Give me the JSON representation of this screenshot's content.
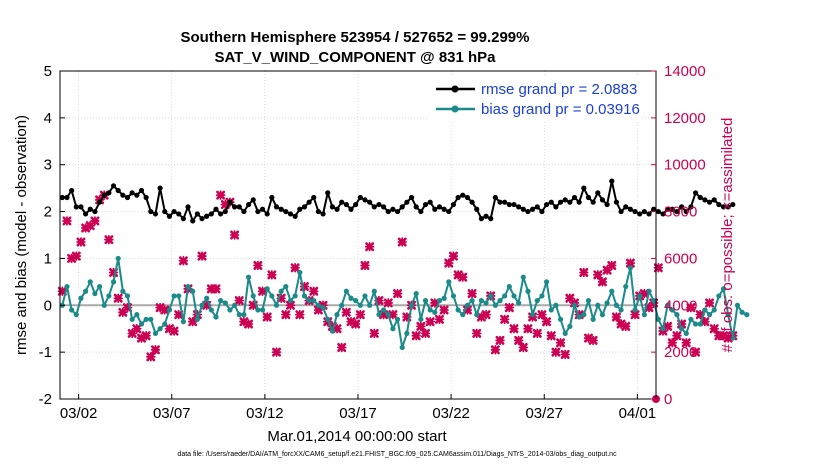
{
  "chart_data": {
    "type": "line",
    "title": "Southern Hemisphere 523954 / 527652 = 99.299%",
    "subtitle": "SAT_V_WIND_COMPONENT @ 831 hPa",
    "ylabel": "rmse and bias (model - observation)",
    "y2label": "# of obs: o=possible; ×=assimilated",
    "xlabel": "Mar.01,2014 00:00:00 start",
    "footer": "data file: /Users/raeder/DAI/ATM_forcXX/CAM6_setup/f.e21.FHIST_BGC.f09_025.CAM6assim.011/Diags_NTrS_2014-03/obs_diag_output.nc",
    "xlim": [
      0,
      32
    ],
    "ylim": [
      -2,
      5
    ],
    "y2lim": [
      0,
      14000
    ],
    "yticks": [
      "-2",
      "-1",
      "0",
      "1",
      "2",
      "3",
      "4",
      "5"
    ],
    "y2ticks": [
      "0",
      "2000",
      "4000",
      "6000",
      "8000",
      "10000",
      "12000",
      "14000"
    ],
    "xtick_positions": [
      1,
      6,
      11,
      16,
      21,
      26,
      31
    ],
    "xtick_labels": [
      "03/02",
      "03/07",
      "03/12",
      "03/17",
      "03/22",
      "03/27",
      "04/01"
    ],
    "grid": true,
    "legend": {
      "placement": "top-right",
      "entries": [
        {
          "label": "rmse grand pr = 2.0883",
          "color": "#000000"
        },
        {
          "label": "bias grand pr = 0.03916",
          "color": "#1a8a8a"
        }
      ]
    },
    "colors": {
      "rmse": "#000000",
      "bias": "#1a8a8a",
      "obs": "#cc0052",
      "zero_line": "#a9a9a9",
      "grid": "#cccccc"
    },
    "step_days": 0.25,
    "x_start": 0.125,
    "series": [
      {
        "name": "rmse",
        "values": [
          2.3,
          2.3,
          2.45,
          2.1,
          2.1,
          1.95,
          2.05,
          2.0,
          2.2,
          2.35,
          2.4,
          2.55,
          2.45,
          2.35,
          2.3,
          2.4,
          2.35,
          2.45,
          2.3,
          2.0,
          1.95,
          2.5,
          2.0,
          1.9,
          2.0,
          1.95,
          1.85,
          2.1,
          1.8,
          1.95,
          1.85,
          1.9,
          1.95,
          2.05,
          1.95,
          2.0,
          2.2,
          2.1,
          2.1,
          2.0,
          2.15,
          2.25,
          2.0,
          2.05,
          1.95,
          2.3,
          2.1,
          2.05,
          2.0,
          1.95,
          1.9,
          2.05,
          2.1,
          2.2,
          2.3,
          2.0,
          1.95,
          2.4,
          2.1,
          2.05,
          2.2,
          2.15,
          2.05,
          2.15,
          2.3,
          2.25,
          2.2,
          2.1,
          2.15,
          2.1,
          2.0,
          2.05,
          2.0,
          2.1,
          2.2,
          2.3,
          2.1,
          2.0,
          2.15,
          2.2,
          2.05,
          2.1,
          2.05,
          2.0,
          2.15,
          2.3,
          2.35,
          2.3,
          2.2,
          2.05,
          1.85,
          1.9,
          1.85,
          2.3,
          2.2,
          2.2,
          2.15,
          2.15,
          2.1,
          2.05,
          2.0,
          2.05,
          2.1,
          2.0,
          2.15,
          2.2,
          2.1,
          2.2,
          2.25,
          2.2,
          2.3,
          2.2,
          2.5,
          2.3,
          2.2,
          2.4,
          2.25,
          2.15,
          2.65,
          2.2,
          2.0,
          2.1,
          2.05,
          2.0,
          1.95,
          2.0,
          1.95,
          2.05,
          2.0,
          1.95,
          2.05,
          2.05,
          2.0,
          2.1,
          2.0,
          2.1,
          2.4,
          2.3,
          2.25,
          2.2,
          2.25,
          2.15,
          2.1,
          2.1,
          2.15
        ]
      },
      {
        "name": "bias",
        "values": [
          0.0,
          0.4,
          -0.1,
          -0.2,
          0.15,
          0.3,
          0.5,
          0.25,
          0.4,
          0.0,
          0.2,
          0.5,
          1.0,
          0.3,
          0.2,
          -0.3,
          -0.2,
          -0.4,
          -0.3,
          -0.3,
          -0.6,
          -0.5,
          -0.4,
          -0.1,
          0.2,
          0.2,
          -0.35,
          0.4,
          0.3,
          -0.3,
          0.0,
          0.15,
          -0.1,
          -0.25,
          0.1,
          0.05,
          -0.1,
          0.0,
          -0.2,
          -0.2,
          0.6,
          0.2,
          -0.1,
          -0.1,
          0.35,
          0.2,
          0.0,
          0.3,
          0.4,
          0.1,
          0.2,
          0.7,
          0.2,
          0.1,
          0.1,
          0.0,
          -0.05,
          -0.3,
          -0.55,
          -0.2,
          0.0,
          0.3,
          0.15,
          0.1,
          0.0,
          0.2,
          0.0,
          0.3,
          -0.2,
          -0.1,
          -0.2,
          -0.5,
          -0.3,
          -0.9,
          -0.6,
          0.0,
          0.25,
          -0.3,
          0.1,
          -0.1,
          -0.15,
          0.1,
          0.15,
          0.5,
          0.2,
          -0.1,
          -0.2,
          0.0,
          0.1,
          -0.2,
          0.1,
          0.05,
          0.2,
          0.0,
          0.1,
          0.2,
          0.4,
          0.2,
          0.05,
          0.6,
          0.3,
          -0.2,
          0.1,
          0.2,
          0.5,
          -0.1,
          0.0,
          -0.3,
          -0.6,
          -0.45,
          0.0,
          -0.25,
          -0.2,
          0.1,
          -0.3,
          0.0,
          -0.2,
          0.05,
          0.3,
          0.0,
          -0.1,
          0.4,
          0.8,
          -0.1,
          0.2,
          -0.2,
          0.3,
          0.1,
          -0.3,
          -0.5,
          0.0,
          -0.1,
          -0.2,
          -0.5,
          -0.6,
          -0.3,
          -0.4,
          -0.4,
          -0.1,
          -0.2,
          -0.1,
          0.2,
          0.35,
          -0.2,
          -0.7,
          0.0,
          -0.15,
          -0.2
        ]
      },
      {
        "name": "obs_assimilated",
        "values": [
          4600,
          7600,
          6000,
          6100,
          6700,
          7300,
          7400,
          7600,
          8500,
          8700,
          6800,
          5400,
          4300,
          3700,
          3900,
          2800,
          3000,
          2600,
          2700,
          1800,
          2100,
          3900,
          3800,
          3000,
          2900,
          3600,
          5900,
          4700,
          3300,
          3600,
          6100,
          4000,
          4700,
          4700,
          8700,
          8300,
          8400,
          7000,
          4200,
          3300,
          3200,
          4000,
          5700,
          4600,
          3500,
          5300,
          2000,
          4300,
          3600,
          4000,
          5600,
          3600,
          4800,
          4200,
          4600,
          3800,
          4000,
          3300,
          3100,
          3000,
          2200,
          3700,
          3300,
          3200,
          3600,
          5700,
          6500,
          2800,
          4200,
          3600,
          4100,
          3600,
          4500,
          6700,
          3500,
          4000,
          2700,
          3100,
          2800,
          3300,
          4100,
          3400,
          3800,
          5800,
          6100,
          5300,
          5200,
          3800,
          4500,
          2800,
          3500,
          3600,
          4400,
          2100,
          2500,
          3400,
          3900,
          3000,
          2500,
          2200,
          3000,
          3500,
          2800,
          3600,
          3300,
          2700,
          2000,
          2400,
          1900,
          4300,
          4100,
          3600,
          5400,
          2600,
          2500,
          5300,
          5000,
          5500,
          5700,
          3500,
          3200,
          3100,
          5800,
          3600,
          4400,
          4500,
          3900,
          4100,
          5600,
          2900,
          3100,
          2400,
          2700,
          3200,
          2400,
          3900,
          2000,
          3600,
          3300,
          4100,
          3000,
          2700,
          2700,
          2600,
          2700
        ]
      },
      {
        "name": "obs_possible_endpoint",
        "values": [
          0
        ]
      }
    ]
  }
}
